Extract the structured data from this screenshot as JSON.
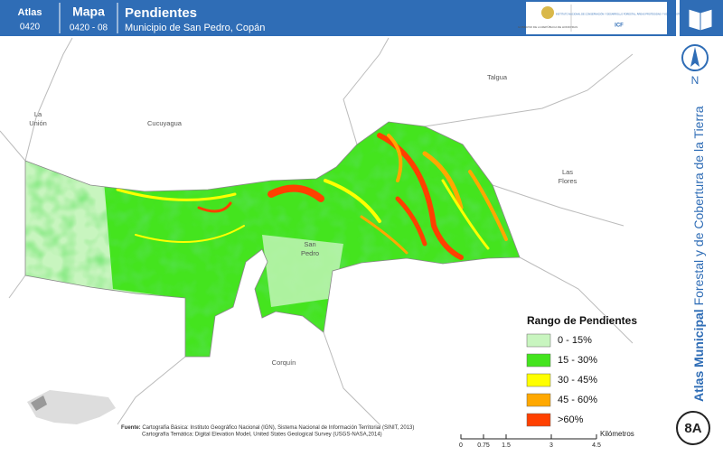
{
  "header": {
    "atlas_label": "Atlas",
    "atlas_code": "0420",
    "map_label": "Mapa",
    "map_code": "0420 - 08",
    "title": "Pendientes",
    "subtitle": "Municipio de San Pedro, Copán",
    "logo_left": "GOBIERNO DE LA REPÚBLICA DE HONDURAS",
    "logo_right": "INSTITUTO NACIONAL DE CONSERVACIÓN Y DESARROLLO FORESTAL, ÁREAS PROTEGIDAS Y VIDA SILVESTRE",
    "logo_right_short": "ICF"
  },
  "places": {
    "talgua": "Talgua",
    "la_union_1": "La",
    "la_union_2": "Unión",
    "cucuyagua": "Cucuyagua",
    "las_flores_1": "Las",
    "las_flores_2": "Flores",
    "san_pedro_1": "San",
    "san_pedro_2": "Pedro",
    "corquin": "Corquín"
  },
  "north": "N",
  "sidebar": {
    "bold": "Atlas Municipal",
    "rest": "Forestal y de Cobertura de la Tierra"
  },
  "legend": {
    "title": "Rango de Pendientes",
    "items": [
      {
        "label": "0 - 15%",
        "color": "#c8f5bf"
      },
      {
        "label": "15 - 30%",
        "color": "#44e41e"
      },
      {
        "label": "30 - 45%",
        "color": "#ffff00"
      },
      {
        "label": "45 - 60%",
        "color": "#ffa800"
      },
      {
        "label": ">60%",
        "color": "#ff4000"
      }
    ]
  },
  "scale_bar": {
    "unit": "Kilómetros",
    "ticks": [
      0,
      0.75,
      1.5,
      3,
      4.5
    ]
  },
  "source": {
    "label": "Fuente:",
    "line1": "Cartografía Básica: Instituto Geográfico Nacional (IGN), Sistema Nacional de Información Territorial (SINIT, 2013)",
    "line2": "Cartografía Temática: Digital Elevation Model, United States Geological Survey (USGS-NASA,2014)"
  },
  "sheet": "8A"
}
